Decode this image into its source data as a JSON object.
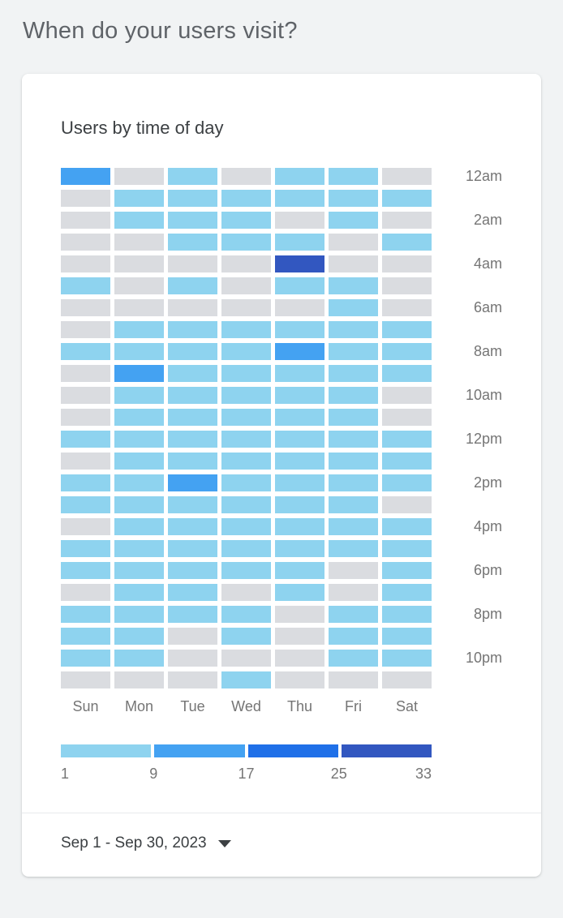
{
  "page": {
    "title": "When do your users visit?"
  },
  "card": {
    "title": "Users by time of day",
    "footer": {
      "date_range": "Sep 1 - Sep 30, 2023"
    }
  },
  "colors": {
    "background": "#f1f3f4",
    "card": "#ffffff",
    "page_title": "#5f6368",
    "card_title": "#3c4043",
    "axis_label": "#757575",
    "footer_text": "#3c4043"
  },
  "chart_data": {
    "type": "heatmap",
    "title": "Users by time of day",
    "x_categories": [
      "Sun",
      "Mon",
      "Tue",
      "Wed",
      "Thu",
      "Fri",
      "Sat"
    ],
    "y_categories": [
      "12am",
      "1am",
      "2am",
      "3am",
      "4am",
      "5am",
      "6am",
      "7am",
      "8am",
      "9am",
      "10am",
      "11am",
      "12pm",
      "1pm",
      "2pm",
      "3pm",
      "4pm",
      "5pm",
      "6pm",
      "7pm",
      "8pm",
      "9pm",
      "10pm",
      "11pm"
    ],
    "y_labels_shown": [
      "12am",
      "2am",
      "4am",
      "6am",
      "8am",
      "10am",
      "12pm",
      "2pm",
      "4pm",
      "6pm",
      "8pm",
      "10pm"
    ],
    "legend": {
      "position": "bottom",
      "tick_labels": [
        1,
        9,
        17,
        25,
        33
      ],
      "colors": [
        "#8ED3EF",
        "#44A2F2",
        "#1F70E8",
        "#3257C0"
      ]
    },
    "bucket_colors": [
      "#DADCE0",
      "#8ED3EF",
      "#44A2F2",
      "#1F70E8",
      "#3257C0"
    ],
    "bucket_ranges": [
      "no data",
      "1-8",
      "9-16",
      "17-24",
      "25-33"
    ],
    "matrix": [
      [
        2,
        0,
        1,
        0,
        1,
        1,
        0
      ],
      [
        0,
        1,
        1,
        1,
        1,
        1,
        1
      ],
      [
        0,
        1,
        1,
        1,
        0,
        1,
        0
      ],
      [
        0,
        0,
        1,
        1,
        1,
        0,
        1
      ],
      [
        0,
        0,
        0,
        0,
        4,
        0,
        0
      ],
      [
        1,
        0,
        1,
        0,
        1,
        1,
        0
      ],
      [
        0,
        0,
        0,
        0,
        0,
        1,
        0
      ],
      [
        0,
        1,
        1,
        1,
        1,
        1,
        1
      ],
      [
        1,
        1,
        1,
        1,
        2,
        1,
        1
      ],
      [
        0,
        2,
        1,
        1,
        1,
        1,
        1
      ],
      [
        0,
        1,
        1,
        1,
        1,
        1,
        0
      ],
      [
        0,
        1,
        1,
        1,
        1,
        1,
        0
      ],
      [
        1,
        1,
        1,
        1,
        1,
        1,
        1
      ],
      [
        0,
        1,
        1,
        1,
        1,
        1,
        1
      ],
      [
        1,
        1,
        2,
        1,
        1,
        1,
        1
      ],
      [
        1,
        1,
        1,
        1,
        1,
        1,
        0
      ],
      [
        0,
        1,
        1,
        1,
        1,
        1,
        1
      ],
      [
        1,
        1,
        1,
        1,
        1,
        1,
        1
      ],
      [
        1,
        1,
        1,
        1,
        1,
        0,
        1
      ],
      [
        0,
        1,
        1,
        0,
        1,
        0,
        1
      ],
      [
        1,
        1,
        1,
        1,
        0,
        1,
        1
      ],
      [
        1,
        1,
        0,
        1,
        0,
        1,
        1
      ],
      [
        1,
        1,
        0,
        0,
        0,
        1,
        1
      ],
      [
        0,
        0,
        0,
        1,
        0,
        0,
        0
      ]
    ]
  }
}
